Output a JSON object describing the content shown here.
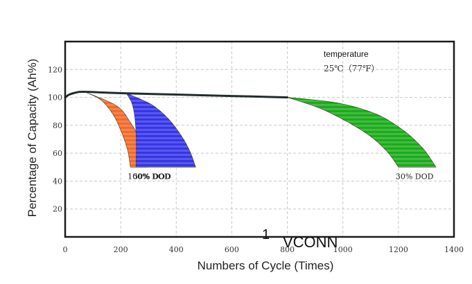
{
  "chart_data": {
    "type": "line",
    "title": "",
    "xlabel": "Numbers of Cycle (Times)",
    "ylabel": "Percentage of Capacity (Ah%)",
    "xlim": [
      0,
      1400
    ],
    "ylim": [
      0,
      140
    ],
    "xticks": [
      0,
      200,
      400,
      600,
      800,
      1000,
      1200,
      1400
    ],
    "yticks": [
      20,
      40,
      60,
      80,
      100,
      120
    ],
    "grid": true,
    "series": [
      {
        "name": "100% DOD",
        "color": "#f26a2a",
        "upper": [
          [
            70,
            104
          ],
          [
            130,
            98
          ],
          [
            175,
            87
          ],
          [
            205,
            74
          ],
          [
            225,
            62
          ],
          [
            235,
            50
          ]
        ],
        "lower": [
          [
            70,
            104
          ],
          [
            185,
            94
          ],
          [
            235,
            82
          ],
          [
            268,
            70
          ],
          [
            285,
            60
          ],
          [
            298,
            50
          ]
        ]
      },
      {
        "name": "50% DOD",
        "color": "#3535e8",
        "upper": [
          [
            220,
            103
          ],
          [
            240,
            96
          ],
          [
            250,
            87
          ],
          [
            255,
            75
          ],
          [
            256,
            62
          ],
          [
            255,
            50
          ]
        ],
        "lower": [
          [
            220,
            103
          ],
          [
            310,
            95
          ],
          [
            370,
            85
          ],
          [
            420,
            72
          ],
          [
            450,
            61
          ],
          [
            470,
            50
          ]
        ]
      },
      {
        "name": "30% DOD",
        "color": "#1aac1a",
        "upper": [
          [
            800,
            100
          ],
          [
            920,
            92
          ],
          [
            1020,
            82
          ],
          [
            1100,
            72
          ],
          [
            1160,
            61
          ],
          [
            1200,
            50
          ]
        ],
        "lower": [
          [
            800,
            100
          ],
          [
            980,
            96
          ],
          [
            1120,
            88
          ],
          [
            1220,
            76
          ],
          [
            1290,
            63
          ],
          [
            1335,
            50
          ]
        ]
      }
    ],
    "baseline": [
      [
        0,
        100
      ],
      [
        15,
        102
      ],
      [
        40,
        103.5
      ],
      [
        70,
        104
      ],
      [
        200,
        103
      ],
      [
        400,
        102
      ],
      [
        600,
        101
      ],
      [
        800,
        100
      ]
    ],
    "annotation": {
      "title": "temperature",
      "subtitle": "25℃（77℉）"
    }
  },
  "watermark": {
    "digit": "1",
    "text": "VCONN"
  },
  "colors": {
    "axis": "#1a1a1a",
    "grid": "#c8c8c8",
    "baseline": "#1f2d2d"
  }
}
